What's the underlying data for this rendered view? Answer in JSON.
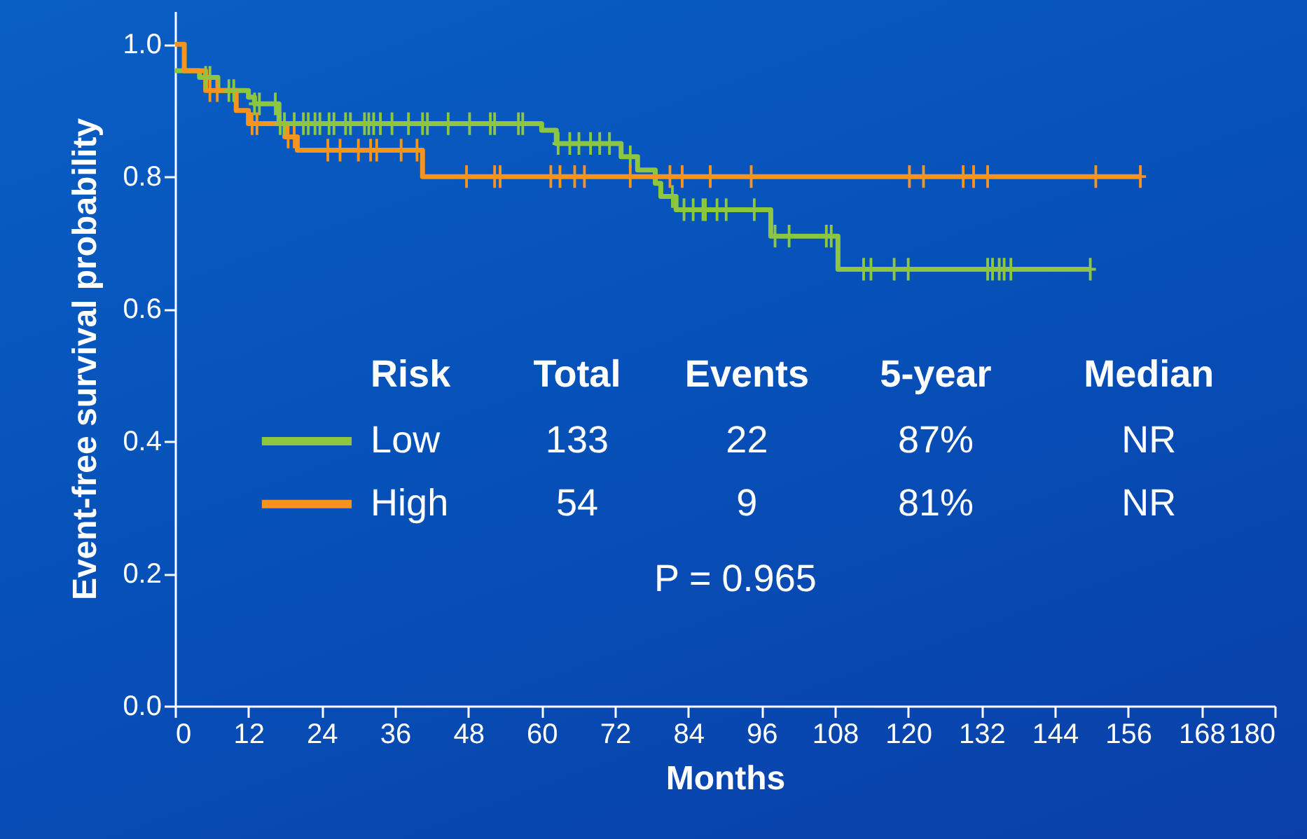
{
  "chart_data": {
    "type": "step",
    "xlabel": "Months",
    "ylabel": "Event-free survival probability",
    "legend_title": "Risk",
    "legend": "bottom",
    "grid": false,
    "xlim": [
      0,
      180
    ],
    "xticks": [
      0,
      12,
      24,
      36,
      48,
      60,
      72,
      84,
      96,
      108,
      120,
      132,
      144,
      156,
      168,
      180
    ],
    "ylim": [
      0,
      1.05
    ],
    "yticks": [
      {
        "value": 0,
        "label": "0.0"
      },
      {
        "value": 0.2,
        "label": "0.2"
      },
      {
        "value": 0.4,
        "label": "0.4"
      },
      {
        "value": 0.6,
        "label": "0.6"
      },
      {
        "value": 0.8,
        "label": "0.8"
      },
      {
        "value": 1,
        "label": "1.0"
      }
    ],
    "annotations": [
      "Total",
      "Events",
      "5-year",
      "Median",
      "133",
      "22",
      "87%",
      "NR",
      "54",
      "9",
      "81%",
      "NR",
      "P = 0.965"
    ],
    "series": [
      {
        "name": "Low",
        "color": "#8dc63f",
        "x": [
          0,
          4,
          7,
          12,
          13,
          17,
          60,
          62.4,
          73,
          75.7,
          78.6,
          79.5,
          82,
          97.5,
          108.5,
          149.8
        ],
        "values": [
          0.96,
          0.95,
          0.93,
          0.92,
          0.91,
          0.88,
          0.87,
          0.85,
          0.83,
          0.81,
          0.79,
          0.77,
          0.75,
          0.71,
          0.66,
          0.66
        ]
      },
      {
        "name": "High",
        "color": "#f7941d",
        "x": [
          0,
          1.5,
          5,
          10,
          12,
          18,
          20,
          40.5,
          158
        ],
        "values": [
          1.0,
          0.96,
          0.93,
          0.9,
          0.88,
          0.86,
          0.84,
          0.8,
          0.8
        ]
      },
      {
        "color": "#8dc63f",
        "type": "scatter",
        "marker": "cross",
        "x": [
          5,
          5.7,
          8.8,
          9.6,
          13,
          13.8,
          16.4,
          17.2,
          17.9,
          19.5,
          21,
          21.8,
          22.9,
          23.7,
          25.2,
          26,
          27.9,
          28.7,
          31,
          31.7,
          32.5,
          33.6,
          35.5,
          38.2,
          40.5,
          41.3,
          44.7,
          48.2,
          51.6,
          52.3,
          56.2,
          56.9,
          62.7,
          64.6,
          66.1,
          68,
          69.5,
          71.1,
          74.5,
          81.4,
          83.3,
          84.8,
          86.4,
          86.8,
          88.7,
          90.2,
          94.8,
          98.2,
          100.5,
          106.6,
          107.4,
          112.7,
          113.9,
          117.7,
          120,
          133,
          133.8,
          134.9,
          135.7,
          136.8,
          149.8
        ],
        "values": [
          0.95,
          0.95,
          0.93,
          0.93,
          0.91,
          0.91,
          0.91,
          0.88,
          0.88,
          0.88,
          0.88,
          0.88,
          0.88,
          0.88,
          0.88,
          0.88,
          0.88,
          0.88,
          0.88,
          0.88,
          0.88,
          0.88,
          0.88,
          0.88,
          0.88,
          0.88,
          0.88,
          0.88,
          0.88,
          0.88,
          0.88,
          0.88,
          0.85,
          0.85,
          0.85,
          0.85,
          0.85,
          0.85,
          0.83,
          0.77,
          0.75,
          0.75,
          0.75,
          0.75,
          0.75,
          0.75,
          0.75,
          0.71,
          0.71,
          0.71,
          0.71,
          0.66,
          0.66,
          0.66,
          0.66,
          0.66,
          0.66,
          0.66,
          0.66,
          0.66,
          0.66
        ]
      },
      {
        "color": "#f7941d",
        "type": "scatter",
        "marker": "cross",
        "x": [
          5.7,
          6.9,
          12.6,
          13.4,
          18.5,
          19.5,
          25,
          27,
          30,
          32,
          33,
          37,
          39.6,
          47.7,
          52.3,
          53.2,
          61.5,
          63,
          65.4,
          67,
          74.5,
          81,
          83,
          87.6,
          94.3,
          120.2,
          122.5,
          129,
          130.7,
          133,
          150.7,
          158
        ],
        "values": [
          0.93,
          0.93,
          0.88,
          0.88,
          0.86,
          0.86,
          0.84,
          0.84,
          0.84,
          0.84,
          0.84,
          0.84,
          0.84,
          0.8,
          0.8,
          0.8,
          0.8,
          0.8,
          0.8,
          0.8,
          0.8,
          0.8,
          0.8,
          0.8,
          0.8,
          0.8,
          0.8,
          0.8,
          0.8,
          0.8,
          0.8,
          0.8
        ]
      }
    ]
  }
}
